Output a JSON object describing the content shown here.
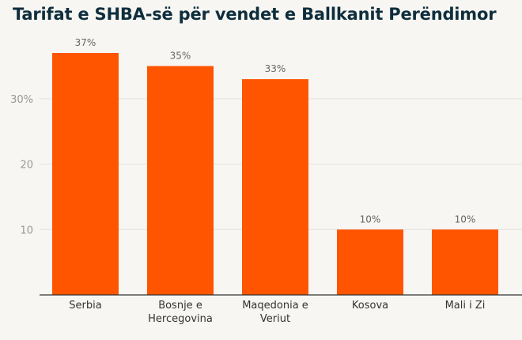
{
  "colors": {
    "bar": "#ff5400",
    "background": "#f7f6f2",
    "title": "#0f2e3d"
  },
  "chart_data": {
    "type": "bar",
    "title": "Tarifat e SHBA-së për vendet e Ballkanit Perëndimor",
    "categories": [
      [
        "Serbia"
      ],
      [
        "Bosnje e",
        "Hercegovina"
      ],
      [
        "Maqedonia e",
        "Veriut"
      ],
      [
        "Kosova"
      ],
      [
        "Mali i Zi"
      ]
    ],
    "values": [
      37,
      35,
      33,
      10,
      10
    ],
    "value_labels": [
      "37%",
      "35%",
      "33%",
      "10%",
      "10%"
    ],
    "yticks": [
      {
        "value": 10,
        "label": "10"
      },
      {
        "value": 20,
        "label": "20"
      },
      {
        "value": 30,
        "label": "30%"
      }
    ],
    "ylim": [
      0,
      40
    ],
    "grid": true,
    "xlabel": "",
    "ylabel": ""
  }
}
